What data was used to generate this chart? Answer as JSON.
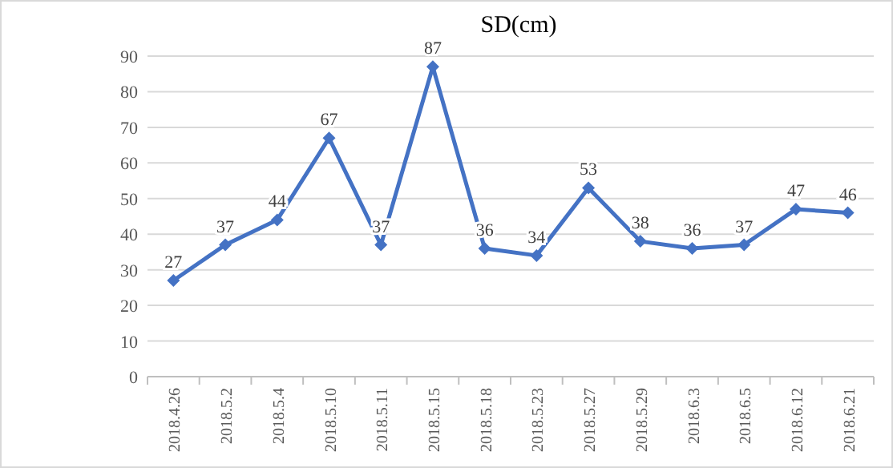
{
  "chart_data": {
    "type": "line",
    "title": "SD(cm)",
    "categories": [
      "2018.4.26",
      "2018.5.2",
      "2018.5.4",
      "2018.5.10",
      "2018.5.11",
      "2018.5.15",
      "2018.5.18",
      "2018.5.23",
      "2018.5.27",
      "2018.5.29",
      "2018.6.3",
      "2018.6.5",
      "2018.6.12",
      "2018.6.21"
    ],
    "series": [
      {
        "color": "#4472c4",
        "values": [
          27,
          37,
          44,
          67,
          37,
          87,
          36,
          34,
          53,
          38,
          36,
          37,
          47,
          46
        ]
      }
    ],
    "ylim": [
      0,
      90
    ],
    "yticks": [
      0,
      10,
      20,
      30,
      40,
      50,
      60,
      70,
      80,
      90
    ],
    "grid": "y",
    "marker": "diamond",
    "line_style": "solid",
    "data_labels": true
  }
}
